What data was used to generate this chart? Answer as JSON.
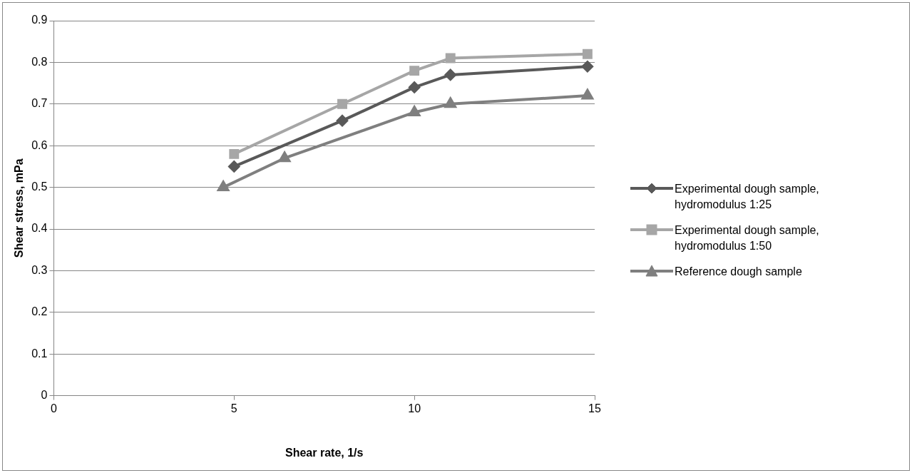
{
  "chart_data": {
    "type": "line",
    "xlabel": "Shear rate, 1/s",
    "ylabel": "Shear stress, mPa",
    "xlim": [
      0,
      15
    ],
    "xticks": [
      0,
      5,
      10,
      15
    ],
    "ylim": [
      0,
      0.9
    ],
    "yticks": [
      0,
      0.1,
      0.2,
      0.3,
      0.4,
      0.5,
      0.6,
      0.7,
      0.8,
      0.9
    ],
    "grid": "y",
    "legend": "right",
    "line_style": "solid",
    "series": [
      {
        "name": "Experimental dough sample, hydromodulus 1:25",
        "color": "#595959",
        "marker": "diamond",
        "x": [
          5,
          8,
          10,
          11,
          14.8
        ],
        "values": [
          0.55,
          0.66,
          0.74,
          0.77,
          0.79
        ]
      },
      {
        "name": "Experimental dough sample, hydromodulus 1:50",
        "color": "#a6a6a6",
        "marker": "square",
        "x": [
          5,
          8,
          10,
          11,
          14.8
        ],
        "values": [
          0.58,
          0.7,
          0.78,
          0.81,
          0.82
        ]
      },
      {
        "name": "Reference dough sample",
        "color": "#7f7f7f",
        "marker": "triangle",
        "x": [
          4.7,
          6.4,
          10,
          11,
          14.8
        ],
        "values": [
          0.5,
          0.57,
          0.68,
          0.7,
          0.72
        ]
      }
    ]
  }
}
